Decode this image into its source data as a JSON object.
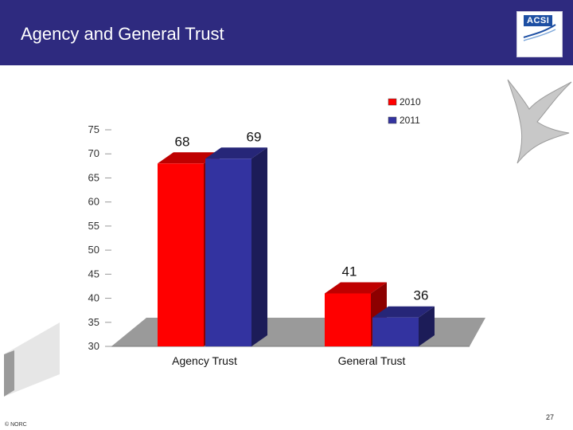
{
  "header": {
    "title": "Agency and General Trust",
    "logo_text": "ACSI",
    "background": "#2e2a7f"
  },
  "footer": {
    "copyright": "© NORC",
    "page_number": "27"
  },
  "chart_data": {
    "type": "bar",
    "style": "3d-clustered",
    "categories": [
      "Agency Trust",
      "General Trust"
    ],
    "series": [
      {
        "name": "2010",
        "values": [
          68,
          41
        ],
        "color": "#ff0000"
      },
      {
        "name": "2011",
        "values": [
          69,
          36
        ],
        "color": "#3333a0"
      }
    ],
    "ylim": [
      30,
      75
    ],
    "yticks": [
      30,
      35,
      40,
      45,
      50,
      55,
      60,
      65,
      70,
      75
    ],
    "legend_position": "top-right",
    "data_labels": true,
    "grid": false,
    "title": "",
    "xlabel": "",
    "ylabel": ""
  }
}
